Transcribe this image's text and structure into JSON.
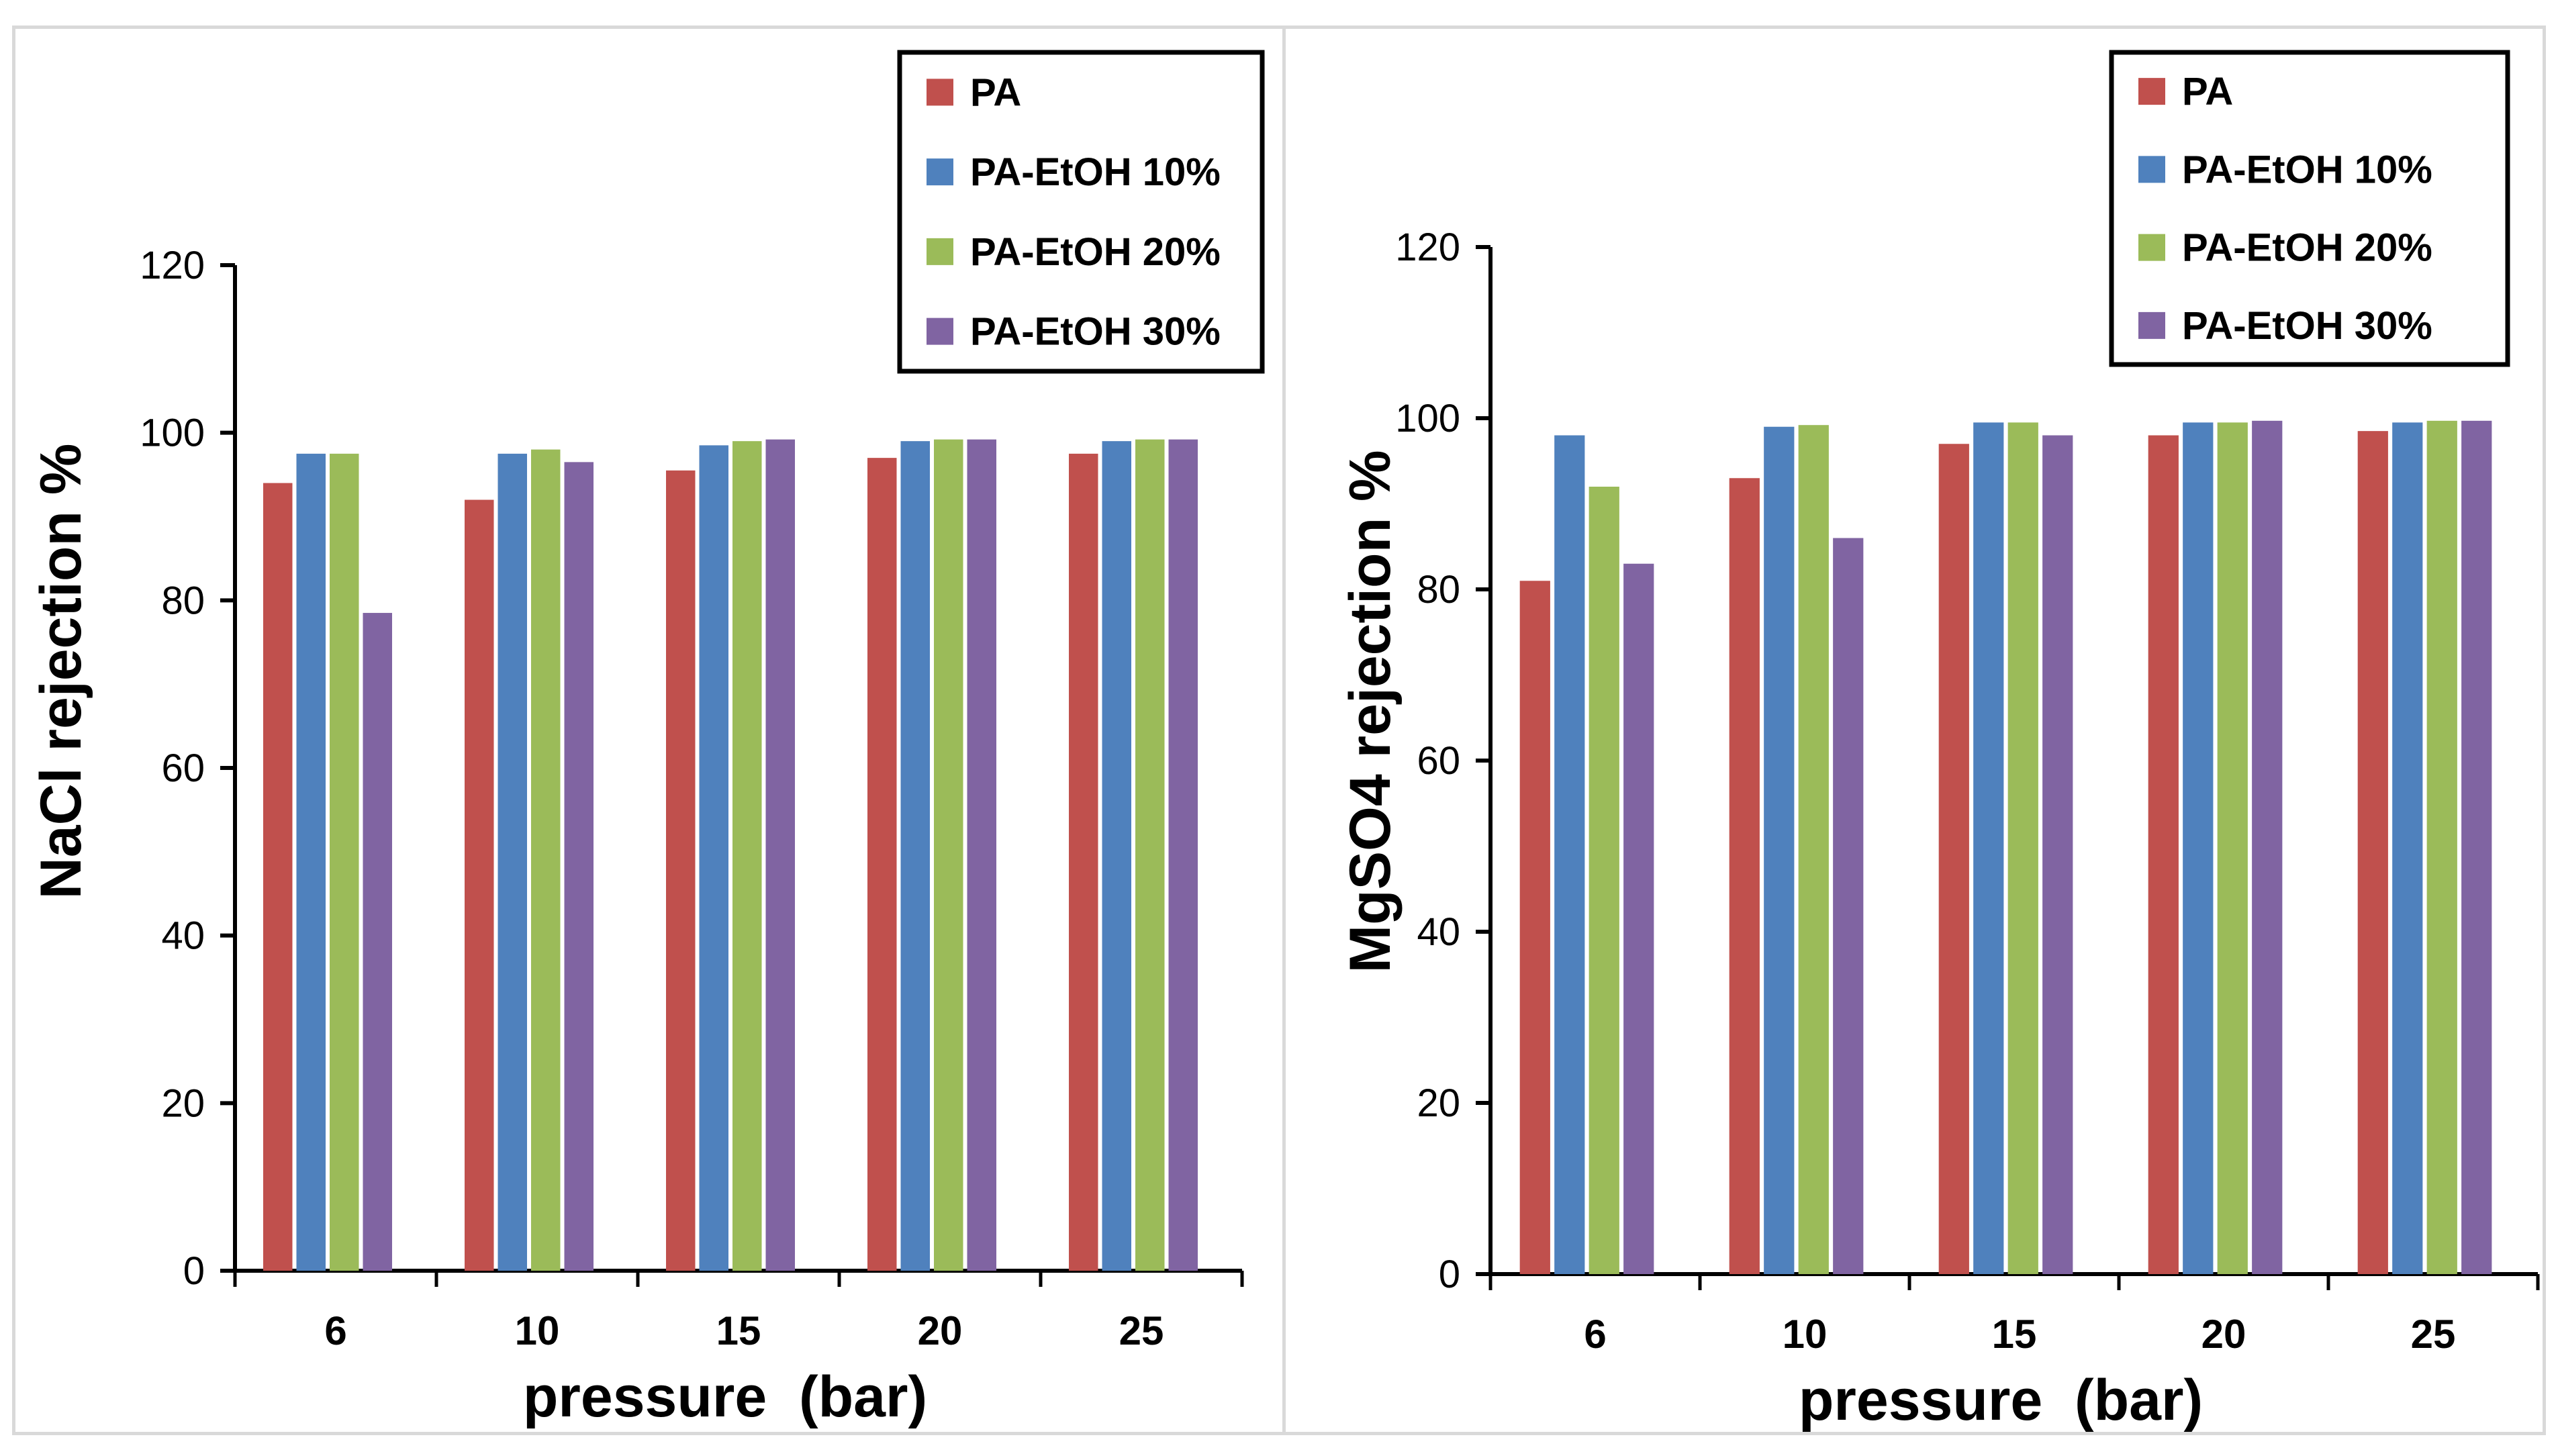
{
  "chart_data": [
    {
      "type": "bar",
      "title": "",
      "xlabel": "pressure  (bar)",
      "ylabel": "NaCl rejection %",
      "ylim": [
        0,
        120
      ],
      "yticks": [
        "0",
        "20",
        "40",
        "60",
        "80",
        "100",
        "120"
      ],
      "categories": [
        "6",
        "10",
        "15",
        "20",
        "25"
      ],
      "legend_position": "top-right",
      "series": [
        {
          "name": "PA",
          "color": "#c0504d",
          "values": [
            94,
            92,
            95.5,
            97,
            97.5
          ]
        },
        {
          "name": "PA-EtOH 10%",
          "color": "#4f81bd",
          "values": [
            97.5,
            97.5,
            98.5,
            99,
            99
          ]
        },
        {
          "name": "PA-EtOH 20%",
          "color": "#9bbb59",
          "values": [
            97.5,
            98,
            99,
            99.2,
            99.2
          ]
        },
        {
          "name": "PA-EtOH 30%",
          "color": "#8064a2",
          "values": [
            78.5,
            96.5,
            99.2,
            99.2,
            99.2
          ]
        }
      ]
    },
    {
      "type": "bar",
      "title": "",
      "xlabel": "pressure  (bar)",
      "ylabel": "MgSO4 rejection %",
      "ylim": [
        0,
        120
      ],
      "yticks": [
        "0",
        "20",
        "40",
        "60",
        "80",
        "100",
        "120"
      ],
      "categories": [
        "6",
        "10",
        "15",
        "20",
        "25"
      ],
      "legend_position": "top-right",
      "series": [
        {
          "name": "PA",
          "color": "#c0504d",
          "values": [
            81,
            93,
            97,
            98,
            98.5
          ]
        },
        {
          "name": "PA-EtOH 10%",
          "color": "#4f81bd",
          "values": [
            98,
            99,
            99.5,
            99.5,
            99.5
          ]
        },
        {
          "name": "PA-EtOH 20%",
          "color": "#9bbb59",
          "values": [
            92,
            99.2,
            99.5,
            99.5,
            99.7
          ]
        },
        {
          "name": "PA-EtOH 30%",
          "color": "#8064a2",
          "values": [
            83,
            86,
            98,
            99.7,
            99.7
          ]
        }
      ]
    }
  ]
}
